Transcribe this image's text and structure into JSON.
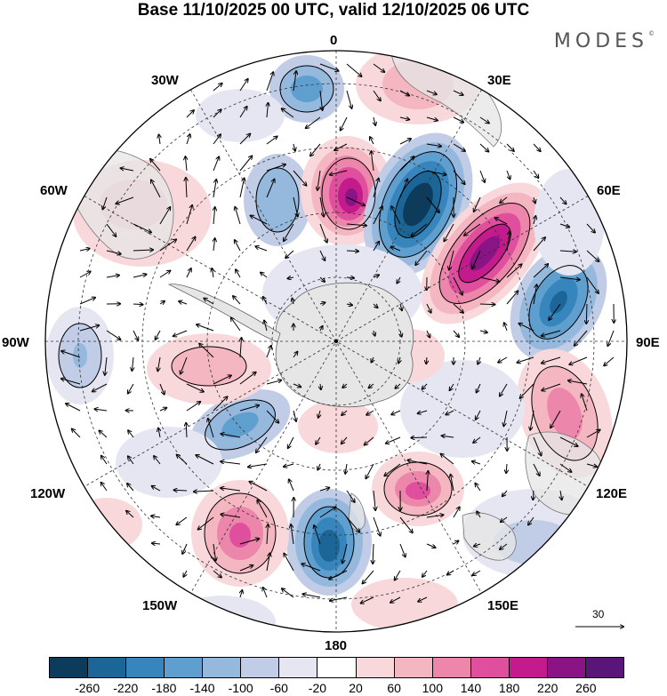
{
  "title": "Base 11/10/2025 00 UTC, valid 12/10/2025 06 UTC",
  "brand": "MODES",
  "brand_mark": "©",
  "longitude_labels": {
    "lon_0": "0",
    "lon_30e": "30E",
    "lon_60e": "60E",
    "lon_90e": "90E",
    "lon_120e": "120E",
    "lon_150e": "150E",
    "lon_180": "180",
    "lon_150w": "150W",
    "lon_120w": "120W",
    "lon_90w": "90W",
    "lon_60w": "60W",
    "lon_30w": "30W"
  },
  "reference_vector": {
    "label": "30"
  },
  "colorbar": {
    "colors": [
      "#0d3b5c",
      "#1b6696",
      "#3785bd",
      "#5f9fcf",
      "#95b8dd",
      "#c1cde6",
      "#e6e6f2",
      "#ffffff",
      "#f9d8dc",
      "#f4b6c1",
      "#ec86aa",
      "#e04e9e",
      "#c31a8c",
      "#8a1386",
      "#5a1578"
    ],
    "ticks": [
      "-260",
      "-220",
      "-180",
      "-140",
      "-100",
      "-60",
      "-20",
      "20",
      "60",
      "100",
      "140",
      "180",
      "220",
      "260"
    ]
  },
  "anomaly_centers": [
    {
      "id": "a1",
      "sign": "neg",
      "value": -140
    },
    {
      "id": "a2",
      "sign": "neg",
      "value": -100
    },
    {
      "id": "a3",
      "sign": "pos",
      "value": 220
    },
    {
      "id": "a4",
      "sign": "neg",
      "value": -260
    },
    {
      "id": "a5",
      "sign": "pos",
      "value": 240
    },
    {
      "id": "a6",
      "sign": "neg",
      "value": -200
    },
    {
      "id": "a7",
      "sign": "pos",
      "value": 120
    },
    {
      "id": "a8",
      "sign": "pos",
      "value": 140
    },
    {
      "id": "a9",
      "sign": "neg",
      "value": -120
    },
    {
      "id": "a10",
      "sign": "pos",
      "value": 80
    },
    {
      "id": "a11",
      "sign": "pos",
      "value": 100
    },
    {
      "id": "a12",
      "sign": "neg",
      "value": -80
    },
    {
      "id": "a13",
      "sign": "pos",
      "value": 60
    },
    {
      "id": "a14",
      "sign": "neg",
      "value": -220
    },
    {
      "id": "a15",
      "sign": "pos",
      "value": 160
    },
    {
      "id": "a16",
      "sign": "neg",
      "value": -60
    },
    {
      "id": "a17",
      "sign": "pos",
      "value": 40
    },
    {
      "id": "a18",
      "sign": "neg",
      "value": -40
    }
  ]
}
